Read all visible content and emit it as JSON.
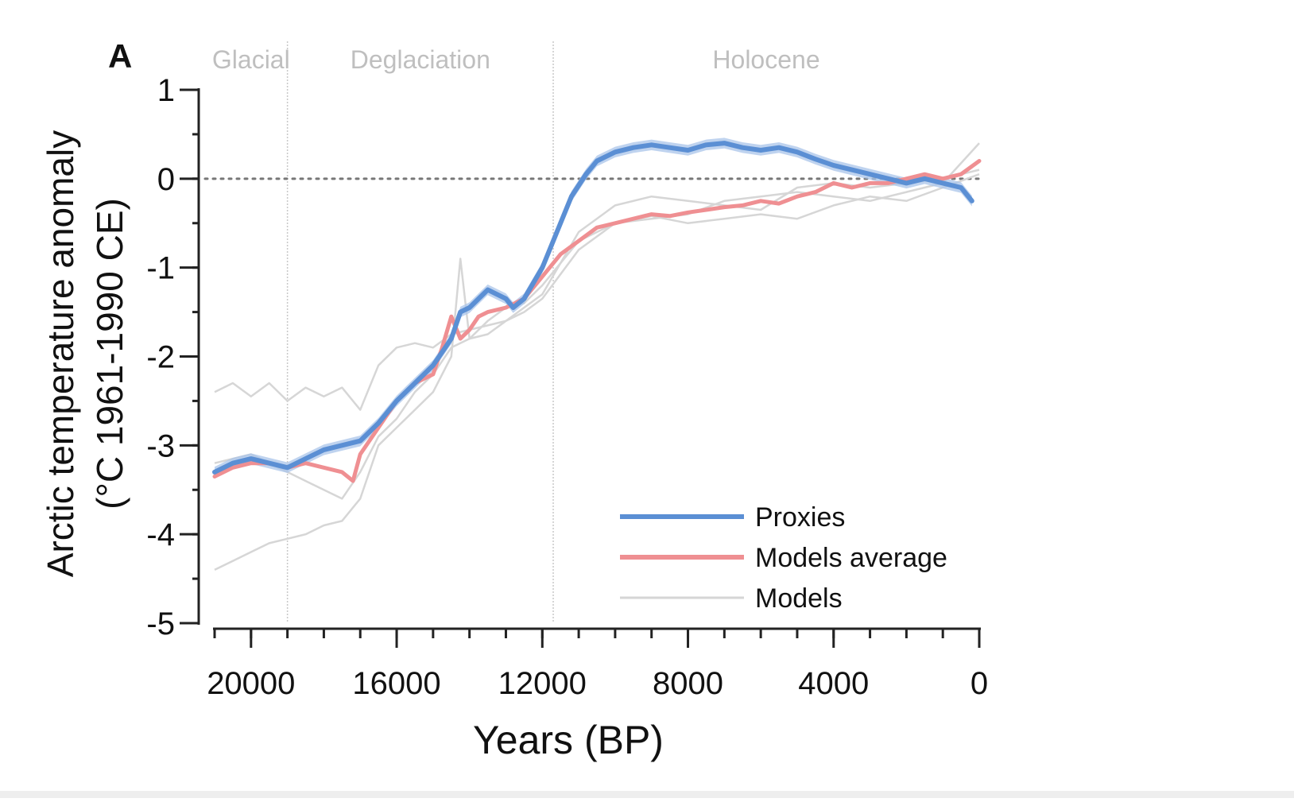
{
  "chart_data": {
    "type": "line",
    "panel_label": "A",
    "xlabel": "Years (BP)",
    "ylabel": [
      "Arctic temperature anomaly",
      "(°C 1961-1990 CE)"
    ],
    "xlim": [
      21000,
      0
    ],
    "ylim": [
      -5,
      1
    ],
    "x_ticks": [
      20000,
      16000,
      12000,
      8000,
      4000,
      0
    ],
    "x_tick_labels": [
      "20000",
      "16000",
      "12000",
      "8000",
      "4000",
      "0"
    ],
    "y_ticks": [
      1,
      0,
      -1,
      -2,
      -3,
      -4,
      -5
    ],
    "y_tick_labels": [
      "1",
      "0",
      "-1",
      "-2",
      "-3",
      "-4",
      "-5"
    ],
    "x_minor_step": 1000,
    "y_minor_step": 0.5,
    "zero_reference_line": true,
    "periods": [
      {
        "label": "Glacial",
        "start": 21000,
        "end": 19000
      },
      {
        "label": "Deglaciation",
        "start": 19000,
        "end": 11700
      },
      {
        "label": "Holocene",
        "start": 11700,
        "end": 0
      }
    ],
    "period_boundaries": [
      19000,
      11700
    ],
    "legend": {
      "position": "bottom-right",
      "entries": [
        "Proxies",
        "Models average",
        "Models"
      ]
    },
    "colors": {
      "proxies": "#5b8fd4",
      "proxies_band": "#a9c4ea",
      "models_average": "#ef8f92",
      "models": "#d6d6d6",
      "axis": "#222222",
      "period_label": "#bfbfbf",
      "boundary": "#c8c8c8",
      "zero_line": "#777777"
    },
    "series": [
      {
        "name": "Proxies",
        "x": [
          21000,
          20500,
          20000,
          19500,
          19000,
          18500,
          18000,
          17500,
          17000,
          16500,
          16000,
          15500,
          15000,
          14500,
          14250,
          14000,
          13500,
          13000,
          12800,
          12500,
          12000,
          11500,
          11200,
          10800,
          10500,
          10000,
          9500,
          9000,
          8500,
          8000,
          7500,
          7000,
          6500,
          6000,
          5500,
          5000,
          4500,
          4000,
          3500,
          3000,
          2500,
          2000,
          1500,
          1000,
          500,
          200
        ],
        "y": [
          -3.3,
          -3.2,
          -3.15,
          -3.2,
          -3.25,
          -3.15,
          -3.05,
          -3.0,
          -2.95,
          -2.75,
          -2.5,
          -2.3,
          -2.1,
          -1.8,
          -1.5,
          -1.45,
          -1.25,
          -1.35,
          -1.45,
          -1.35,
          -1.0,
          -0.5,
          -0.2,
          0.05,
          0.2,
          0.3,
          0.35,
          0.38,
          0.35,
          0.32,
          0.38,
          0.4,
          0.35,
          0.32,
          0.35,
          0.3,
          0.22,
          0.15,
          0.1,
          0.05,
          0.0,
          -0.05,
          0.0,
          -0.05,
          -0.1,
          -0.25
        ],
        "uncertainty": 0.06
      },
      {
        "name": "Models average",
        "x": [
          21000,
          20500,
          20000,
          19500,
          19000,
          18500,
          18000,
          17500,
          17200,
          17000,
          16500,
          16000,
          15500,
          15000,
          14750,
          14500,
          14250,
          14000,
          13750,
          13500,
          13000,
          12500,
          12000,
          11500,
          11000,
          10500,
          10000,
          9500,
          9000,
          8500,
          8000,
          7500,
          7000,
          6500,
          6000,
          5500,
          5000,
          4500,
          4000,
          3500,
          3000,
          2500,
          2000,
          1500,
          1000,
          500,
          0
        ],
        "y": [
          -3.35,
          -3.25,
          -3.2,
          -3.2,
          -3.25,
          -3.2,
          -3.25,
          -3.3,
          -3.4,
          -3.1,
          -2.8,
          -2.5,
          -2.3,
          -2.2,
          -1.9,
          -1.55,
          -1.8,
          -1.7,
          -1.55,
          -1.5,
          -1.45,
          -1.35,
          -1.1,
          -0.85,
          -0.7,
          -0.55,
          -0.5,
          -0.45,
          -0.4,
          -0.42,
          -0.38,
          -0.35,
          -0.32,
          -0.3,
          -0.25,
          -0.28,
          -0.2,
          -0.15,
          -0.05,
          -0.1,
          -0.05,
          -0.05,
          0.0,
          0.05,
          0.0,
          0.05,
          0.2
        ]
      },
      {
        "name": "Models",
        "x": [
          21000,
          20500,
          20000,
          19500,
          19000,
          18500,
          18000,
          17500,
          17000,
          16500,
          16000,
          15500,
          15000,
          14500,
          14250,
          14000,
          13500,
          13000,
          12500,
          12000,
          11000,
          10000,
          9000,
          8000,
          7000,
          6000,
          5000,
          4000,
          3000,
          2000,
          1000,
          0
        ],
        "y": [
          -4.4,
          -4.3,
          -4.2,
          -4.1,
          -4.05,
          -4.0,
          -3.9,
          -3.85,
          -3.6,
          -3.0,
          -2.8,
          -2.6,
          -2.4,
          -2.0,
          -0.9,
          -1.8,
          -1.6,
          -1.45,
          -1.4,
          -1.2,
          -0.7,
          -0.5,
          -0.45,
          -0.4,
          -0.25,
          -0.2,
          -0.15,
          -0.2,
          -0.25,
          -0.15,
          -0.05,
          0.4
        ]
      },
      {
        "name": "Models",
        "x": [
          21000,
          20500,
          20000,
          19500,
          19000,
          18500,
          18000,
          17500,
          17000,
          16500,
          16000,
          15500,
          15000,
          14500,
          14000,
          13500,
          13000,
          12500,
          12000,
          11000,
          10000,
          9000,
          8000,
          7000,
          6000,
          5000,
          4000,
          3000,
          2000,
          1000,
          0
        ],
        "y": [
          -2.4,
          -2.3,
          -2.45,
          -2.3,
          -2.5,
          -2.35,
          -2.45,
          -2.35,
          -2.6,
          -2.1,
          -1.9,
          -1.85,
          -1.9,
          -1.75,
          -1.7,
          -1.65,
          -1.6,
          -1.45,
          -1.3,
          -0.6,
          -0.3,
          -0.2,
          -0.25,
          -0.3,
          -0.35,
          -0.1,
          -0.05,
          -0.1,
          -0.05,
          0.0,
          0.1
        ]
      },
      {
        "name": "Models",
        "x": [
          21000,
          20500,
          20000,
          19500,
          19000,
          18500,
          18000,
          17500,
          17000,
          16500,
          16000,
          15500,
          15000,
          14500,
          14000,
          13500,
          13000,
          12500,
          12000,
          11000,
          10000,
          9000,
          8000,
          7000,
          6000,
          5000,
          4000,
          3000,
          2000,
          1000,
          0
        ],
        "y": [
          -3.2,
          -3.15,
          -3.1,
          -3.2,
          -3.3,
          -3.4,
          -3.5,
          -3.6,
          -3.3,
          -2.9,
          -2.7,
          -2.4,
          -2.2,
          -1.9,
          -1.8,
          -1.75,
          -1.6,
          -1.5,
          -1.35,
          -0.8,
          -0.5,
          -0.42,
          -0.5,
          -0.45,
          -0.4,
          -0.45,
          -0.3,
          -0.2,
          -0.25,
          -0.1,
          0.05
        ]
      }
    ]
  }
}
